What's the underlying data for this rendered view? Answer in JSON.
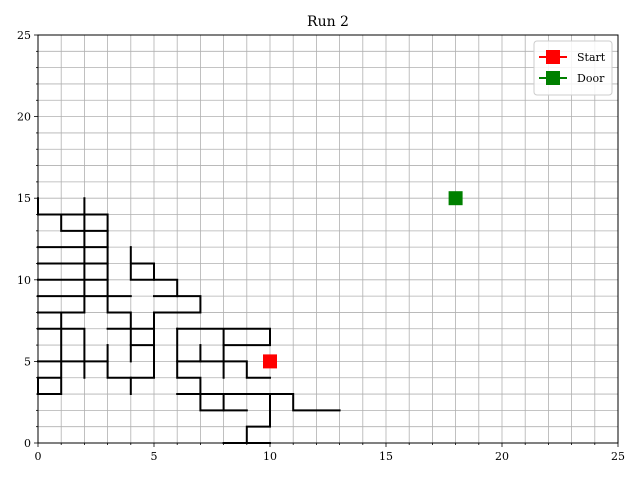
{
  "chart_data": {
    "type": "line",
    "title": "Run 2",
    "xlabel": "",
    "ylabel": "",
    "xlim": [
      0,
      25
    ],
    "ylim": [
      0,
      25
    ],
    "xticks": [
      0,
      5,
      10,
      15,
      20,
      25
    ],
    "yticks": [
      0,
      5,
      10,
      15,
      20,
      25
    ],
    "grid": true,
    "grid_step": 1,
    "legend_position": "top-right",
    "maze_segments": [
      [
        [
          0,
          15
        ],
        [
          0,
          14
        ],
        [
          1,
          14
        ],
        [
          1,
          13
        ],
        [
          2,
          13
        ],
        [
          3,
          13
        ]
      ],
      [
        [
          1,
          14
        ],
        [
          3,
          14
        ],
        [
          3,
          8
        ],
        [
          4,
          8
        ],
        [
          4,
          6
        ],
        [
          5,
          6
        ]
      ],
      [
        [
          2,
          15
        ],
        [
          2,
          8
        ],
        [
          1,
          8
        ],
        [
          1,
          3
        ],
        [
          0,
          3
        ],
        [
          0,
          4
        ],
        [
          1,
          4
        ]
      ],
      [
        [
          0,
          12
        ],
        [
          3,
          12
        ]
      ],
      [
        [
          0,
          11
        ],
        [
          3,
          11
        ]
      ],
      [
        [
          0,
          10
        ],
        [
          3,
          10
        ]
      ],
      [
        [
          0,
          9
        ],
        [
          4,
          9
        ]
      ],
      [
        [
          0,
          7
        ],
        [
          2,
          7
        ],
        [
          2,
          4
        ]
      ],
      [
        [
          0,
          5
        ],
        [
          3,
          5
        ],
        [
          3,
          4
        ],
        [
          4,
          4
        ],
        [
          4,
          3
        ]
      ],
      [
        [
          1,
          8
        ],
        [
          0,
          8
        ]
      ],
      [
        [
          3,
          6
        ],
        [
          3,
          5
        ]
      ],
      [
        [
          4,
          12
        ],
        [
          4,
          10
        ],
        [
          5,
          10
        ],
        [
          5,
          11
        ],
        [
          4,
          11
        ]
      ],
      [
        [
          3,
          7
        ],
        [
          5,
          7
        ],
        [
          5,
          8
        ],
        [
          7,
          8
        ],
        [
          7,
          9
        ],
        [
          6,
          9
        ],
        [
          6,
          10
        ],
        [
          5,
          10
        ]
      ],
      [
        [
          5,
          9
        ],
        [
          6,
          9
        ]
      ],
      [
        [
          4,
          4
        ],
        [
          5,
          4
        ],
        [
          5,
          7
        ]
      ],
      [
        [
          4,
          5
        ],
        [
          4,
          6
        ]
      ],
      [
        [
          6,
          7
        ],
        [
          10,
          7
        ],
        [
          10,
          6
        ],
        [
          8,
          6
        ],
        [
          8,
          7
        ]
      ],
      [
        [
          6,
          7
        ],
        [
          6,
          4
        ],
        [
          7,
          4
        ],
        [
          7,
          2
        ],
        [
          9,
          2
        ]
      ],
      [
        [
          6,
          5
        ],
        [
          9,
          5
        ],
        [
          9,
          4
        ],
        [
          10,
          4
        ]
      ],
      [
        [
          7,
          6
        ],
        [
          7,
          5
        ]
      ],
      [
        [
          8,
          6
        ],
        [
          8,
          4
        ]
      ],
      [
        [
          6,
          3
        ],
        [
          11,
          3
        ],
        [
          11,
          2
        ],
        [
          13,
          2
        ]
      ],
      [
        [
          8,
          3
        ],
        [
          8,
          2
        ]
      ],
      [
        [
          10,
          3
        ],
        [
          10,
          1
        ],
        [
          9,
          1
        ],
        [
          9,
          0
        ]
      ],
      [
        [
          8,
          0
        ],
        [
          10,
          0
        ]
      ]
    ],
    "series": [
      {
        "name": "Start",
        "color": "#ff0000",
        "marker": "square",
        "x": [
          10
        ],
        "y": [
          5
        ]
      },
      {
        "name": "Door",
        "color": "#008000",
        "marker": "square",
        "x": [
          18
        ],
        "y": [
          15
        ]
      }
    ]
  }
}
